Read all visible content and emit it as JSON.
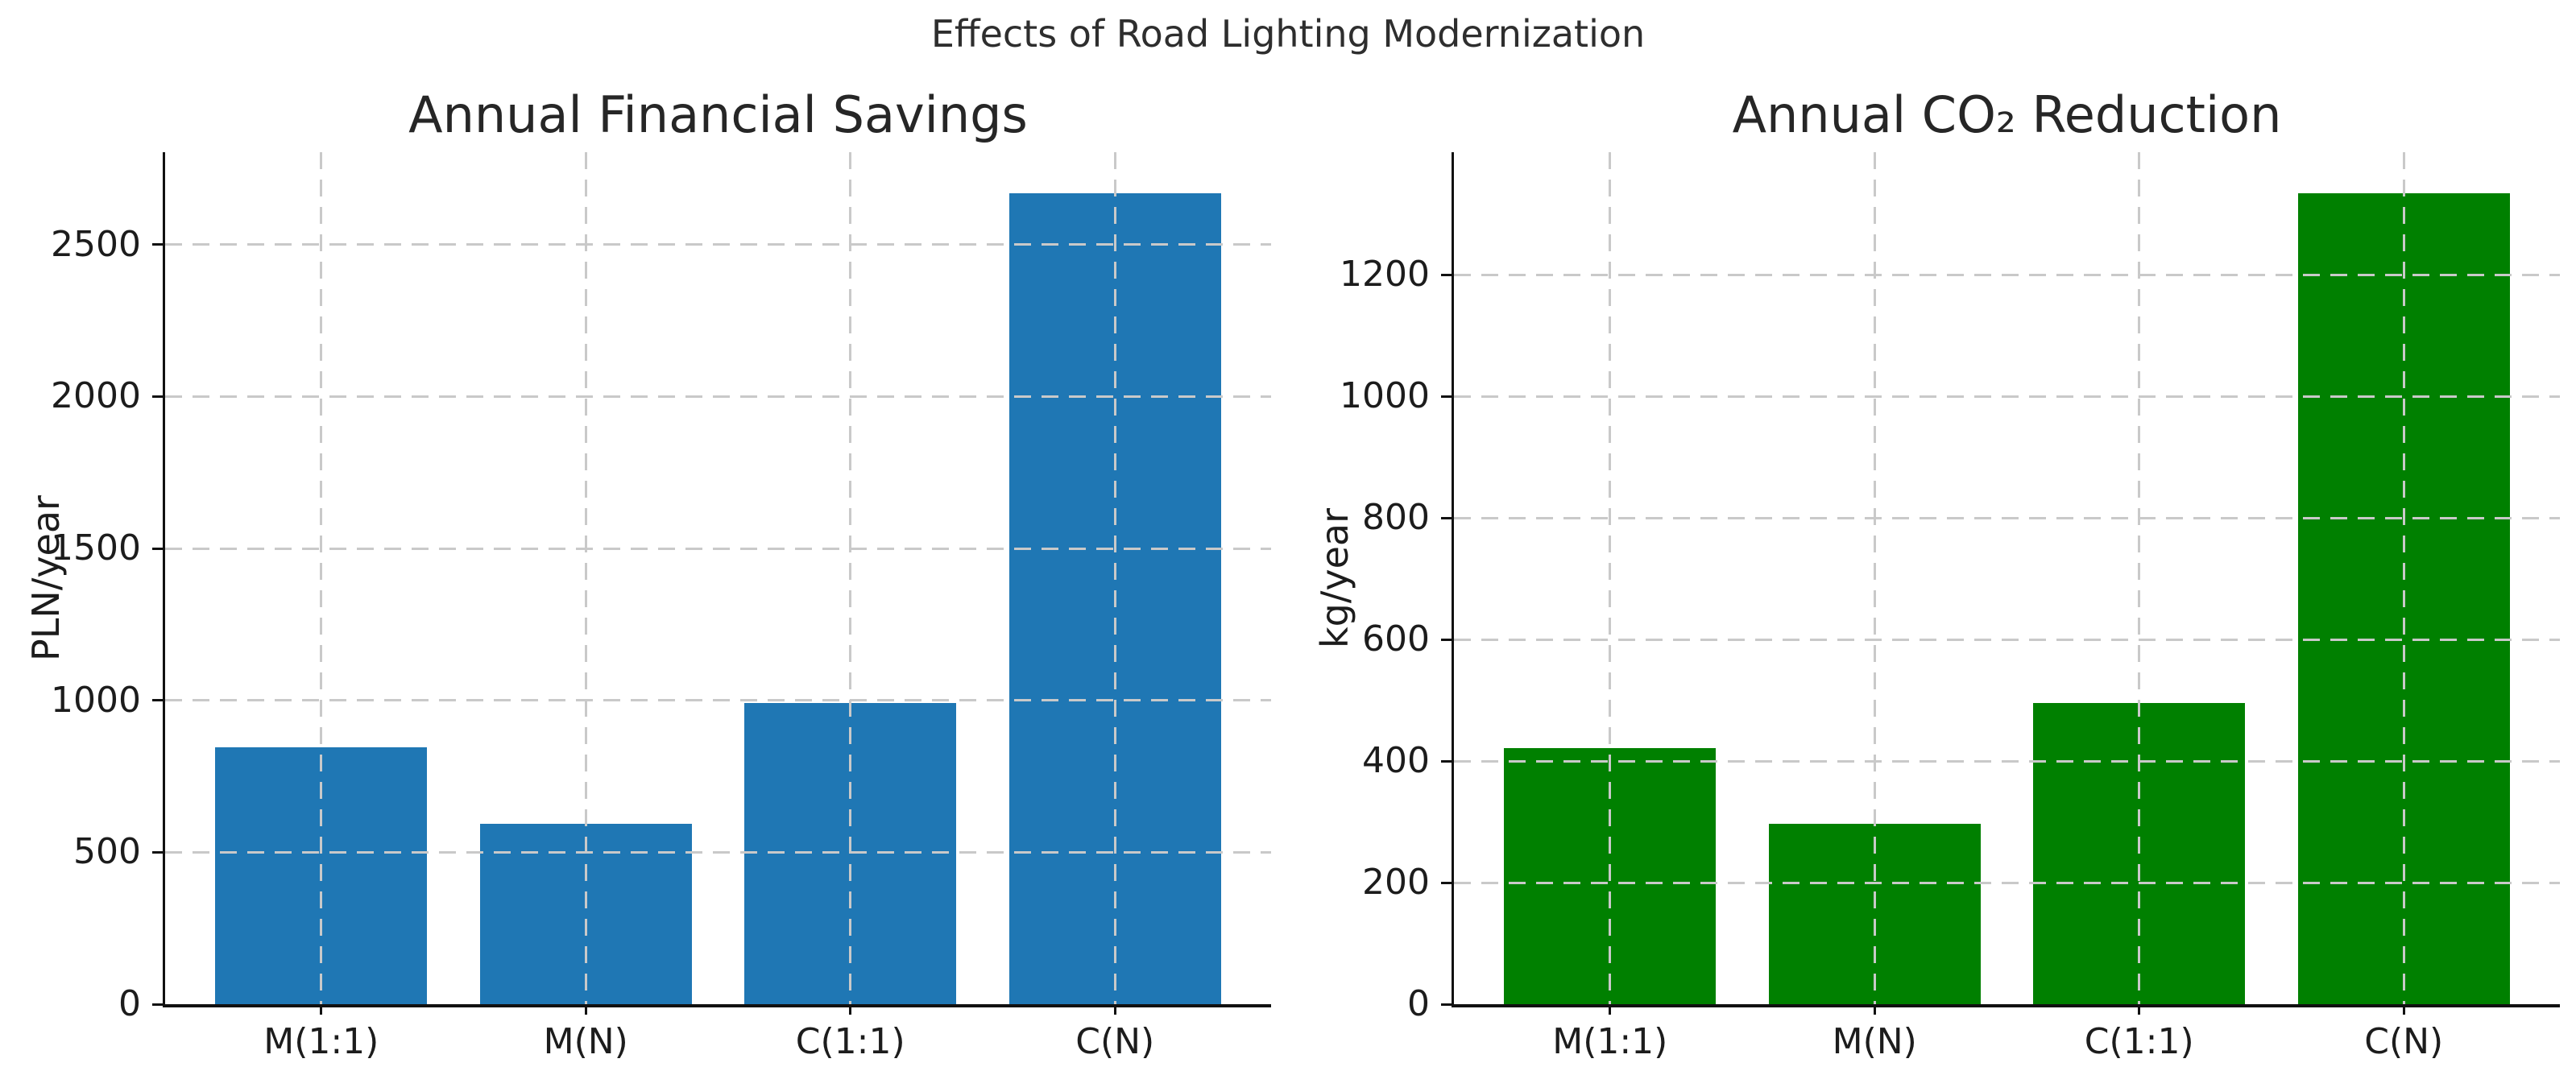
{
  "figure": {
    "suptitle": "Effects of Road Lighting Modernization",
    "background": "#ffffff",
    "text_color": "#1c1c1c",
    "grid_color": "#c9c9c9"
  },
  "chart_data": [
    {
      "type": "bar",
      "title": "Annual Financial Savings",
      "ylabel": "PLN/year",
      "xlabel": "",
      "categories": [
        "M(1:1)",
        "M(N)",
        "C(1:1)",
        "C(N)"
      ],
      "values": [
        845,
        593,
        990,
        2670
      ],
      "bar_color": "#1f77b4",
      "ylim": [
        0,
        2804
      ],
      "yticks": [
        0,
        500,
        1000,
        1500,
        2000,
        2500
      ],
      "grid": "dashed",
      "legend": "none"
    },
    {
      "type": "bar",
      "title": "Annual CO₂ Reduction",
      "ylabel": "kg/year",
      "xlabel": "",
      "categories": [
        "M(1:1)",
        "M(N)",
        "C(1:1)",
        "C(N)"
      ],
      "values": [
        422,
        297,
        495,
        1335
      ],
      "bar_color": "#008000",
      "ylim": [
        0,
        1402
      ],
      "yticks": [
        0,
        200,
        400,
        600,
        800,
        1000,
        1200
      ],
      "grid": "dashed",
      "legend": "none"
    }
  ]
}
